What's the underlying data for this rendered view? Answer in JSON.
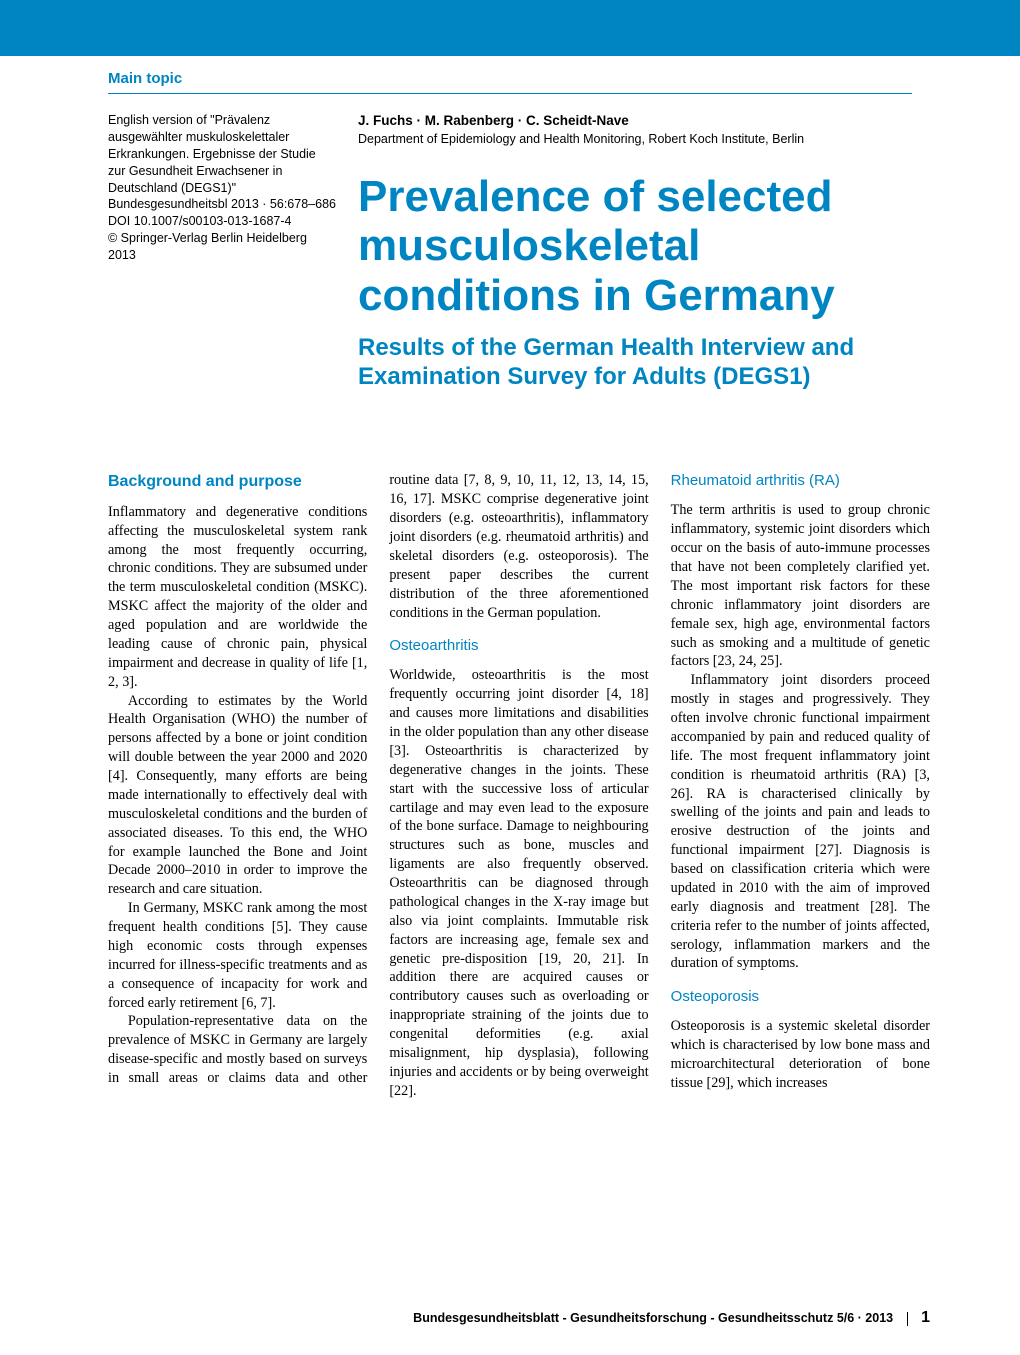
{
  "colors": {
    "banner": "#0085c3",
    "accent": "#0085c3",
    "hr": "#0085c3",
    "text": "#000000",
    "bg": "#ffffff"
  },
  "header": {
    "section": "Main topic"
  },
  "meta": {
    "note": "English version of \"Prävalenz ausgewählter muskuloskelettaler Erkrankungen. Ergebnisse der Studie zur Gesundheit Erwachsener in Deutschland (DEGS1)\"",
    "citation": "Bundesgesundheitsbl 2013 · 56:678–686",
    "doi": "DOI 10.1007/s00103-013-1687-4",
    "copyright": "© Springer-Verlag Berlin Heidelberg 2013"
  },
  "article": {
    "authors": "J. Fuchs · M. Rabenberg · C. Scheidt-Nave",
    "affiliation": "Department of Epidemiology and Health Monitoring, Robert Koch Institute, Berlin",
    "title": "Prevalence of selected musculoskeletal conditions in Germany",
    "subtitle": "Results of the German Health Interview and Examination Survey for Adults (DEGS1)"
  },
  "sections": {
    "background_heading": "Background and purpose",
    "background_p1": "Inflammatory and degenerative conditions affecting the musculoskeletal system rank among the most frequently occurring, chronic conditions. They are subsumed under the term musculoskeletal condition (MSKC). MSKC affect the majority of the older and aged population and are worldwide the leading cause of chronic pain, physical impairment and decrease in quality of life [1, 2, 3].",
    "background_p2": "According to estimates by the World Health Organisation (WHO) the number of persons affected by a bone or joint condition will double between the year 2000 and 2020 [4]. Consequently, many efforts are being made internationally to effectively deal with musculoskeletal conditions and the burden of associated diseases. To this end, the WHO for example launched the Bone and Joint Decade 2000–2010 in order to improve the research and care situation.",
    "background_p3": "In Germany, MSKC rank among the most frequent health conditions [5]. They cause high economic costs through expenses incurred for illness-specific treatments and as a consequence of incapacity for work and forced early retirement [6, 7].",
    "background_p4": "Population-representative data on the prevalence of MSKC in Germany are largely disease-specific and mostly based on surveys in small areas or claims data and other routine data [7, 8, 9, 10, 11, 12, 13, 14, 15, 16, 17]. MSKC comprise degenerative joint disorders (e.g. osteoarthritis), inflammatory joint disorders (e.g. rheumatoid arthritis) and skeletal disorders (e.g. osteoporosis). The present paper describes the current distribution of the three aforementioned conditions in the German population.",
    "osteo_heading": "Osteoarthritis",
    "osteo_p1": "Worldwide, osteoarthritis is the most frequently occurring joint disorder [4, 18] and causes more limitations and disabilities in the older population than any other disease [3]. Osteoarthritis is characterized by degenerative changes in the joints. These start with the successive loss of articular cartilage and may even lead to the exposure of the bone surface. Damage to neighbouring structures such as bone, muscles and ligaments are also frequently observed. Osteoarthritis can be diagnosed through pathological changes in the X-ray image but also via joint complaints. Immutable risk factors are increasing age, female sex and genetic pre-disposition [19, 20, 21]. In addition there are acquired causes or contributory causes such as overloading or inappropriate straining of the joints due to congenital deformities (e.g. axial misalignment, hip dysplasia), following injuries and accidents or by being overweight [22].",
    "ra_heading": "Rheumatoid arthritis (RA)",
    "ra_p1": "The term arthritis is used to group chronic inflammatory, systemic joint disorders which occur on the basis of auto-immune processes that have not been completely clarified yet. The most important risk factors for these chronic inflammatory joint disorders are female sex, high age, environmental factors such as smoking and a multitude of genetic factors [23, 24, 25].",
    "ra_p2": "Inflammatory joint disorders proceed mostly in stages and progressively. They often involve chronic functional impairment accompanied by pain and reduced quality of life. The most frequent inflammatory joint condition is rheumatoid arthritis (RA) [3, 26]. RA is characterised clinically by swelling of the joints and pain and leads to erosive destruction of the joints and functional impairment [27]. Diagnosis is based on classification criteria which were updated in 2010 with the aim of improved early diagnosis and treatment [28]. The criteria refer to the number of joints affected, serology, inflammation markers and the duration of symptoms.",
    "op_heading": "Osteoporosis",
    "op_p1": "Osteoporosis is a systemic skeletal disorder which is characterised by low bone mass and microarchitectural deterioration of bone tissue [29], which increases"
  },
  "footer": {
    "journal": "Bundesgesundheitsblatt - Gesundheitsforschung - Gesundheitsschutz 5/6 · 2013",
    "page": "1"
  }
}
